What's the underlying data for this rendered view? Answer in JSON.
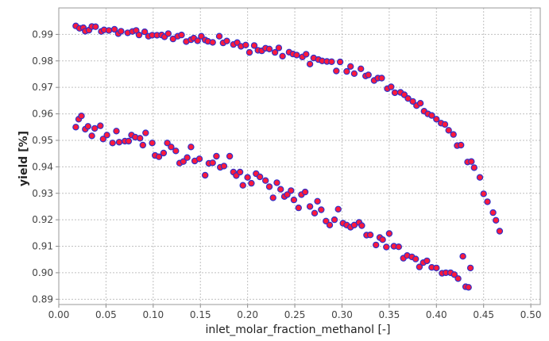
{
  "chart_data": {
    "type": "scatter",
    "xlabel": "inlet_molar_fraction_methanol [-]",
    "ylabel": "yield [%]",
    "xlim": [
      0.0,
      0.51
    ],
    "ylim": [
      0.888,
      1.0
    ],
    "grid": true,
    "legend": "none",
    "x_ticks": [
      {
        "value": 0.0,
        "label": "0.00"
      },
      {
        "value": 0.05,
        "label": "0.05"
      },
      {
        "value": 0.1,
        "label": "0.10"
      },
      {
        "value": 0.15,
        "label": "0.15"
      },
      {
        "value": 0.2,
        "label": "0.20"
      },
      {
        "value": 0.25,
        "label": "0.25"
      },
      {
        "value": 0.3,
        "label": "0.30"
      },
      {
        "value": 0.35,
        "label": "0.35"
      },
      {
        "value": 0.4,
        "label": "0.40"
      },
      {
        "value": 0.45,
        "label": "0.45"
      },
      {
        "value": 0.5,
        "label": "0.50"
      }
    ],
    "y_ticks": [
      {
        "value": 0.89,
        "label": "0.89"
      },
      {
        "value": 0.9,
        "label": "0.90"
      },
      {
        "value": 0.91,
        "label": "0.91"
      },
      {
        "value": 0.92,
        "label": "0.92"
      },
      {
        "value": 0.93,
        "label": "0.93"
      },
      {
        "value": 0.94,
        "label": "0.94"
      },
      {
        "value": 0.95,
        "label": "0.95"
      },
      {
        "value": 0.96,
        "label": "0.96"
      },
      {
        "value": 0.97,
        "label": "0.97"
      },
      {
        "value": 0.98,
        "label": "0.98"
      },
      {
        "value": 0.99,
        "label": "0.99"
      }
    ],
    "marker_fill": "#ff1a3c",
    "marker_edge": "#3030c8",
    "background": "#ffffff",
    "grid_color": "#c0c0c0",
    "series": [
      {
        "points": [
          [
            0.018,
            0.9932
          ],
          [
            0.022,
            0.9923
          ],
          [
            0.026,
            0.9925
          ],
          [
            0.028,
            0.9912
          ],
          [
            0.032,
            0.9916
          ],
          [
            0.035,
            0.993
          ],
          [
            0.039,
            0.9929
          ],
          [
            0.045,
            0.9911
          ],
          [
            0.048,
            0.9917
          ],
          [
            0.053,
            0.9915
          ],
          [
            0.059,
            0.9919
          ],
          [
            0.063,
            0.9903
          ],
          [
            0.066,
            0.9912
          ],
          [
            0.073,
            0.9906
          ],
          [
            0.078,
            0.9911
          ],
          [
            0.082,
            0.9915
          ],
          [
            0.085,
            0.9898
          ],
          [
            0.091,
            0.991
          ],
          [
            0.095,
            0.9893
          ],
          [
            0.099,
            0.9897
          ],
          [
            0.104,
            0.9897
          ],
          [
            0.109,
            0.9898
          ],
          [
            0.112,
            0.9891
          ],
          [
            0.116,
            0.9903
          ],
          [
            0.121,
            0.9883
          ],
          [
            0.126,
            0.9893
          ],
          [
            0.13,
            0.9898
          ],
          [
            0.135,
            0.9873
          ],
          [
            0.14,
            0.988
          ],
          [
            0.143,
            0.9886
          ],
          [
            0.147,
            0.9876
          ],
          [
            0.151,
            0.9893
          ],
          [
            0.155,
            0.9879
          ],
          [
            0.158,
            0.9874
          ],
          [
            0.163,
            0.987
          ],
          [
            0.17,
            0.9893
          ],
          [
            0.174,
            0.9868
          ],
          [
            0.178,
            0.9875
          ],
          [
            0.185,
            0.9862
          ],
          [
            0.189,
            0.9869
          ],
          [
            0.193,
            0.9855
          ],
          [
            0.198,
            0.986
          ],
          [
            0.202,
            0.9832
          ],
          [
            0.207,
            0.9858
          ],
          [
            0.211,
            0.984
          ],
          [
            0.215,
            0.9838
          ],
          [
            0.219,
            0.9848
          ],
          [
            0.223,
            0.9845
          ],
          [
            0.229,
            0.9832
          ],
          [
            0.233,
            0.9849
          ],
          [
            0.237,
            0.9818
          ],
          [
            0.244,
            0.9833
          ],
          [
            0.248,
            0.9826
          ],
          [
            0.252,
            0.9822
          ],
          [
            0.258,
            0.9815
          ],
          [
            0.262,
            0.9825
          ],
          [
            0.266,
            0.9788
          ],
          [
            0.27,
            0.9811
          ],
          [
            0.275,
            0.9805
          ],
          [
            0.279,
            0.98
          ],
          [
            0.284,
            0.9798
          ],
          [
            0.289,
            0.9797
          ],
          [
            0.294,
            0.9762
          ],
          [
            0.298,
            0.9796
          ],
          [
            0.305,
            0.976
          ],
          [
            0.309,
            0.9779
          ],
          [
            0.313,
            0.9752
          ],
          [
            0.32,
            0.977
          ],
          [
            0.325,
            0.9743
          ],
          [
            0.328,
            0.9747
          ],
          [
            0.334,
            0.9726
          ],
          [
            0.338,
            0.9735
          ],
          [
            0.342,
            0.9735
          ],
          [
            0.348,
            0.9695
          ],
          [
            0.352,
            0.9702
          ],
          [
            0.356,
            0.968
          ],
          [
            0.362,
            0.9681
          ],
          [
            0.366,
            0.9672
          ],
          [
            0.37,
            0.9658
          ],
          [
            0.375,
            0.9647
          ],
          [
            0.379,
            0.9631
          ],
          [
            0.383,
            0.964
          ],
          [
            0.387,
            0.961
          ],
          [
            0.391,
            0.96
          ],
          [
            0.395,
            0.9594
          ],
          [
            0.4,
            0.958
          ],
          [
            0.405,
            0.9565
          ],
          [
            0.409,
            0.956
          ],
          [
            0.413,
            0.9538
          ],
          [
            0.418,
            0.9522
          ],
          [
            0.422,
            0.948
          ],
          [
            0.426,
            0.9482
          ],
          [
            0.433,
            0.9418
          ],
          [
            0.437,
            0.942
          ],
          [
            0.44,
            0.9397
          ],
          [
            0.446,
            0.936
          ],
          [
            0.45,
            0.9298
          ],
          [
            0.454,
            0.9268
          ],
          [
            0.46,
            0.9227
          ],
          [
            0.463,
            0.9198
          ],
          [
            0.467,
            0.9157
          ]
        ]
      },
      {
        "points": [
          [
            0.018,
            0.955
          ],
          [
            0.021,
            0.958
          ],
          [
            0.024,
            0.9592
          ],
          [
            0.028,
            0.9542
          ],
          [
            0.031,
            0.9553
          ],
          [
            0.035,
            0.9517
          ],
          [
            0.038,
            0.9545
          ],
          [
            0.044,
            0.9555
          ],
          [
            0.047,
            0.9505
          ],
          [
            0.051,
            0.952
          ],
          [
            0.057,
            0.949
          ],
          [
            0.061,
            0.9535
          ],
          [
            0.064,
            0.9493
          ],
          [
            0.07,
            0.9497
          ],
          [
            0.074,
            0.9497
          ],
          [
            0.077,
            0.952
          ],
          [
            0.081,
            0.9512
          ],
          [
            0.086,
            0.9508
          ],
          [
            0.089,
            0.9482
          ],
          [
            0.092,
            0.9528
          ],
          [
            0.099,
            0.949
          ],
          [
            0.102,
            0.9443
          ],
          [
            0.106,
            0.9438
          ],
          [
            0.111,
            0.9452
          ],
          [
            0.115,
            0.949
          ],
          [
            0.119,
            0.9475
          ],
          [
            0.124,
            0.946
          ],
          [
            0.128,
            0.9414
          ],
          [
            0.132,
            0.942
          ],
          [
            0.136,
            0.9435
          ],
          [
            0.14,
            0.9475
          ],
          [
            0.144,
            0.9422
          ],
          [
            0.149,
            0.943
          ],
          [
            0.155,
            0.9368
          ],
          [
            0.159,
            0.9413
          ],
          [
            0.163,
            0.9415
          ],
          [
            0.167,
            0.944
          ],
          [
            0.171,
            0.9398
          ],
          [
            0.175,
            0.9403
          ],
          [
            0.181,
            0.944
          ],
          [
            0.185,
            0.938
          ],
          [
            0.188,
            0.9367
          ],
          [
            0.192,
            0.938
          ],
          [
            0.195,
            0.933
          ],
          [
            0.2,
            0.936
          ],
          [
            0.204,
            0.9338
          ],
          [
            0.209,
            0.9374
          ],
          [
            0.213,
            0.9362
          ],
          [
            0.219,
            0.9348
          ],
          [
            0.223,
            0.9325
          ],
          [
            0.227,
            0.9283
          ],
          [
            0.231,
            0.934
          ],
          [
            0.235,
            0.9315
          ],
          [
            0.239,
            0.9288
          ],
          [
            0.242,
            0.9295
          ],
          [
            0.246,
            0.931
          ],
          [
            0.249,
            0.9275
          ],
          [
            0.254,
            0.9245
          ],
          [
            0.257,
            0.9295
          ],
          [
            0.261,
            0.9305
          ],
          [
            0.266,
            0.925
          ],
          [
            0.271,
            0.9225
          ],
          [
            0.274,
            0.927
          ],
          [
            0.278,
            0.9238
          ],
          [
            0.283,
            0.9195
          ],
          [
            0.287,
            0.918
          ],
          [
            0.292,
            0.92
          ],
          [
            0.296,
            0.924
          ],
          [
            0.301,
            0.9187
          ],
          [
            0.305,
            0.918
          ],
          [
            0.309,
            0.9172
          ],
          [
            0.313,
            0.918
          ],
          [
            0.318,
            0.919
          ],
          [
            0.321,
            0.9178
          ],
          [
            0.326,
            0.9142
          ],
          [
            0.33,
            0.9143
          ],
          [
            0.336,
            0.9105
          ],
          [
            0.34,
            0.9133
          ],
          [
            0.343,
            0.9125
          ],
          [
            0.347,
            0.9097
          ],
          [
            0.35,
            0.9148
          ],
          [
            0.355,
            0.91
          ],
          [
            0.36,
            0.9098
          ],
          [
            0.365,
            0.9055
          ],
          [
            0.369,
            0.9065
          ],
          [
            0.374,
            0.906
          ],
          [
            0.378,
            0.9052
          ],
          [
            0.382,
            0.9022
          ],
          [
            0.386,
            0.9038
          ],
          [
            0.39,
            0.9045
          ],
          [
            0.395,
            0.902
          ],
          [
            0.4,
            0.9018
          ],
          [
            0.406,
            0.8998
          ],
          [
            0.41,
            0.9
          ],
          [
            0.415,
            0.9
          ],
          [
            0.419,
            0.8993
          ],
          [
            0.423,
            0.8978
          ],
          [
            0.428,
            0.9062
          ],
          [
            0.431,
            0.8947
          ],
          [
            0.434,
            0.8945
          ],
          [
            0.436,
            0.9018
          ]
        ]
      }
    ]
  }
}
